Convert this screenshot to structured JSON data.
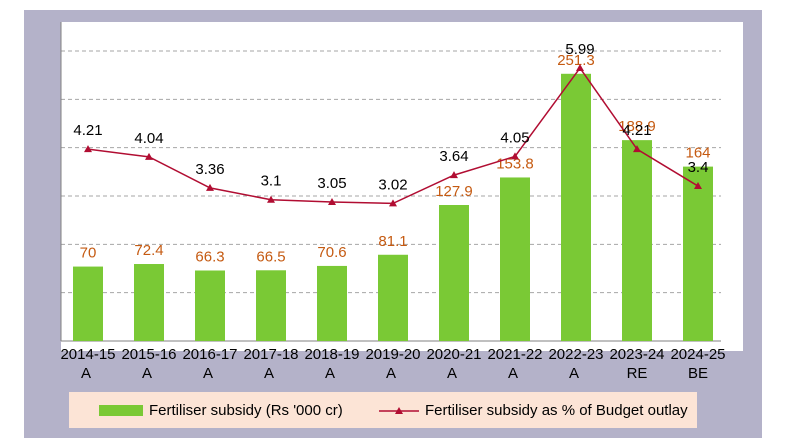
{
  "colors": {
    "bar": "#7ac935",
    "line": "#b10d32",
    "bar_label": "#c55a11",
    "line_label": "#000000",
    "grid": "#a6a6a6",
    "frame": "#b4b2c9",
    "legend_bg": "#fce4d6"
  },
  "chart_data": {
    "type": "bar",
    "categories": [
      "2014-15 A",
      "2015-16 A",
      "2016-17 A",
      "2017-18 A",
      "2018-19 A",
      "2019-20 A",
      "2020-21 A",
      "2021-22 A",
      "2022-23 A",
      "2023-24 RE",
      "2024-25 BE"
    ],
    "category_lines": [
      [
        "2014-15",
        "A"
      ],
      [
        "2015-16",
        "A"
      ],
      [
        "2016-17",
        "A"
      ],
      [
        "2017-18",
        "A"
      ],
      [
        "2018-19",
        "A"
      ],
      [
        "2019-20",
        "A"
      ],
      [
        "2020-21",
        "A"
      ],
      [
        "2021-22",
        "A"
      ],
      [
        "2022-23",
        "A"
      ],
      [
        "2023-24",
        "RE"
      ],
      [
        "2024-25",
        "BE"
      ]
    ],
    "series": [
      {
        "name": "Fertiliser subsidy (Rs '000 cr)",
        "type": "bar",
        "values": [
          70,
          72.4,
          66.3,
          66.5,
          70.6,
          81.1,
          127.9,
          153.8,
          251.3,
          188.9,
          164
        ],
        "labels": [
          "70",
          "72.4",
          "66.3",
          "66.5",
          "70.6",
          "81.1",
          "127.9",
          "153.8",
          "251.3",
          "188.9",
          "164"
        ]
      },
      {
        "name": "Fertiliser subsidy as % of Budget outlay",
        "type": "line",
        "values": [
          4.21,
          4.04,
          3.36,
          3.1,
          3.05,
          3.02,
          3.64,
          4.05,
          5.99,
          4.21,
          3.4
        ],
        "labels": [
          "4.21",
          "4.04",
          "3.36",
          "3.1",
          "3.05",
          "3.02",
          "3.64",
          "4.05",
          "5.99",
          "4.21",
          "3.4"
        ]
      }
    ],
    "title": "",
    "xlabel": "",
    "ylabel": "",
    "ylim_bars": [
      0,
      300
    ],
    "ylim_line": [
      0,
      7
    ],
    "grid": true,
    "legend": "bottom"
  },
  "legend": {
    "bar_label": "Fertiliser subsidy (Rs '000 cr)",
    "line_label": "Fertiliser subsidy as % of Budget outlay"
  }
}
